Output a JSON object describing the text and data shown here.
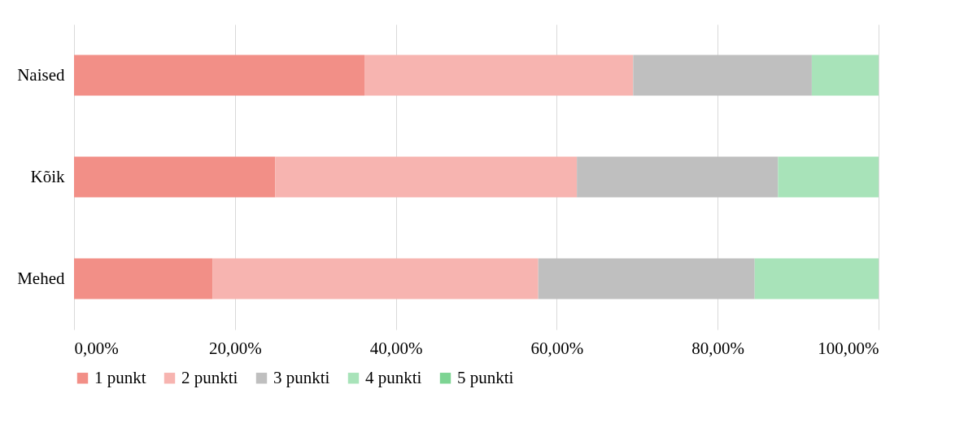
{
  "chart_data": {
    "type": "bar",
    "orientation": "horizontal",
    "stacked": true,
    "categories": [
      "Naised",
      "Kõik",
      "Mehed"
    ],
    "series": [
      {
        "name": "1 punkt",
        "color": "#f28f87",
        "values": [
          36.1,
          25.0,
          17.2
        ]
      },
      {
        "name": "2 punkti",
        "color": "#f7b4b0",
        "values": [
          33.4,
          37.5,
          40.5
        ]
      },
      {
        "name": "3 punkti",
        "color": "#bfbfbf",
        "values": [
          22.2,
          25.0,
          26.9
        ]
      },
      {
        "name": "4 punkti",
        "color": "#a8e3b9",
        "values": [
          8.3,
          12.5,
          15.4
        ]
      },
      {
        "name": "5 punkti",
        "color": "#7dd493",
        "values": [
          0,
          0,
          0
        ]
      }
    ],
    "xlim": [
      0,
      100
    ],
    "xticks": [
      {
        "value": 0,
        "label": "0,00%"
      },
      {
        "value": 20,
        "label": "20,00%"
      },
      {
        "value": 40,
        "label": "40,00%"
      },
      {
        "value": 60,
        "label": "60,00%"
      },
      {
        "value": 80,
        "label": "80,00%"
      },
      {
        "value": 100,
        "label": "100,00%"
      }
    ],
    "grid": "x",
    "legend": "bottom"
  }
}
